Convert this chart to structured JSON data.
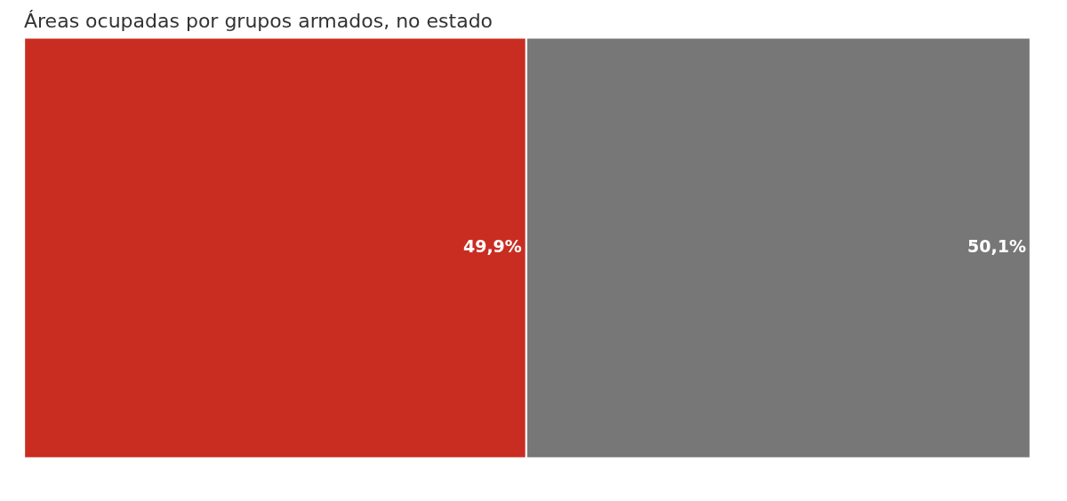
{
  "chart_data": {
    "type": "bar",
    "title": "Áreas ocupadas por grupos armados, no estado",
    "orientation": "horizontal",
    "stacked": true,
    "categories": [
      null
    ],
    "series": [
      {
        "color": "#c92d22",
        "values": [
          49.9
        ],
        "value_labels": [
          "49,9%"
        ]
      },
      {
        "color": "#777777",
        "values": [
          50.1
        ],
        "value_labels": [
          "50,1%"
        ]
      }
    ]
  }
}
